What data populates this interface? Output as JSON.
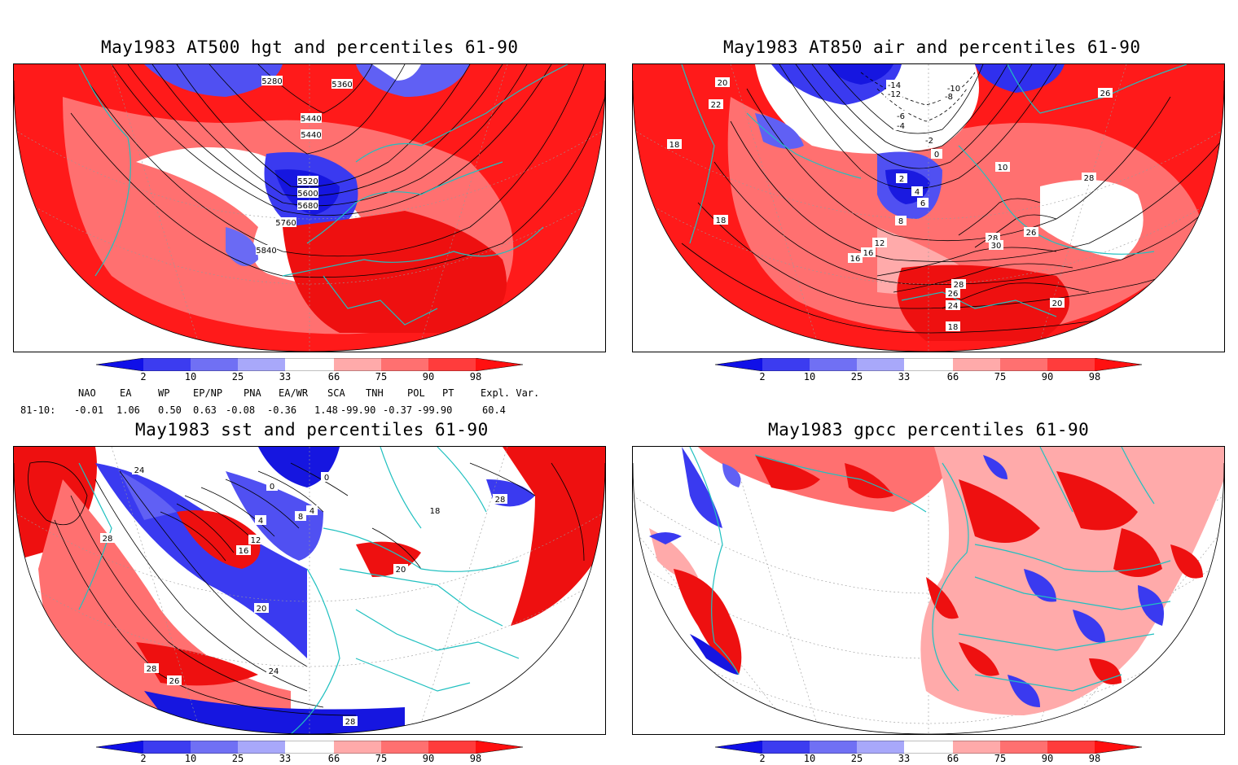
{
  "panels": [
    {
      "title": "May1983 AT500 hgt and percentiles 61-90",
      "contour_labels": [
        "5280",
        "5360",
        "5440",
        "5440",
        "5520",
        "5600",
        "5680",
        "5760",
        "5840"
      ]
    },
    {
      "title": "May1983 AT850 air and percentiles 61-90",
      "contour_labels": [
        "-14",
        "-12",
        "-10",
        "-8",
        "-6",
        "-4",
        "-2",
        "0",
        "2",
        "4",
        "6",
        "8",
        "10",
        "12",
        "16",
        "16",
        "18",
        "18",
        "20",
        "20",
        "22",
        "24",
        "26",
        "26",
        "26",
        "28",
        "28",
        "28",
        "30",
        "18"
      ]
    },
    {
      "title": "May1983 sst and percentiles 61-90",
      "contour_labels": [
        "24",
        "28",
        "28",
        "26",
        "28",
        "20",
        "24",
        "16",
        "12",
        "8",
        "4",
        "4",
        "0",
        "0",
        "28",
        "20",
        "18"
      ]
    },
    {
      "title": "May1983 gpcc percentiles 61-90",
      "contour_labels": []
    }
  ],
  "colorbar": {
    "labels": [
      "2",
      "10",
      "25",
      "33",
      "66",
      "75",
      "90",
      "98"
    ],
    "colors": [
      "#1010e8",
      "#3c3cf0",
      "#7070f4",
      "#a8a8fa",
      "#ffffff",
      "#ffaaaa",
      "#ff7070",
      "#ff3c3c",
      "#ff1010"
    ]
  },
  "indices": {
    "headers": [
      "NAO",
      "EA",
      "WP",
      "EP/NP",
      "PNA",
      "EA/WR",
      "SCA",
      "TNH",
      "POL",
      "PT",
      "Expl. Var."
    ],
    "row_label": "81-10:",
    "values": [
      "-0.01",
      "1.06",
      "0.50",
      "0.63",
      "-0.08",
      "-0.36",
      "1.48",
      "-99.90",
      "-0.37",
      "-99.90",
      "60.4"
    ]
  }
}
